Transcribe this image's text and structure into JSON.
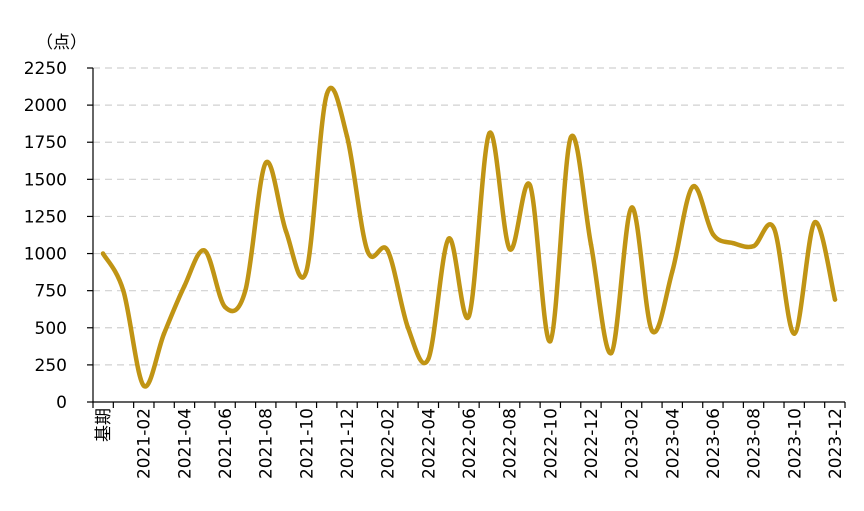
{
  "chart_data": {
    "type": "line",
    "unit_label": "（点）",
    "x_tick_labels": [
      "基期",
      "2021-02",
      "2021-04",
      "2021-06",
      "2021-08",
      "2021-10",
      "2021-12",
      "2022-02",
      "2022-04",
      "2022-06",
      "2022-08",
      "2022-10",
      "2022-12",
      "2023-02",
      "2023-04",
      "2023-06",
      "2023-08",
      "2023-10",
      "2023-12"
    ],
    "y_ticks": [
      0,
      250,
      500,
      750,
      1000,
      1250,
      1500,
      1750,
      2000,
      2250
    ],
    "ylim": [
      0,
      2250
    ],
    "grid": true,
    "series": [
      {
        "color": "#C09414",
        "x": [
          "基期",
          "2021-01",
          "2021-02",
          "2021-03",
          "2021-04",
          "2021-05",
          "2021-06",
          "2021-07",
          "2021-08",
          "2021-09",
          "2021-10",
          "2021-11",
          "2021-12",
          "2022-01",
          "2022-02",
          "2022-03",
          "2022-04",
          "2022-05",
          "2022-06",
          "2022-07",
          "2022-08",
          "2022-09",
          "2022-10",
          "2022-11",
          "2022-12",
          "2023-01",
          "2023-02",
          "2023-03",
          "2023-04",
          "2023-05",
          "2023-06",
          "2023-07",
          "2023-08",
          "2023-09",
          "2023-10",
          "2023-11",
          "2023-12"
        ],
        "values": [
          1000,
          750,
          110,
          460,
          780,
          1020,
          640,
          750,
          1610,
          1150,
          880,
          2070,
          1790,
          1020,
          1020,
          500,
          290,
          1100,
          580,
          1810,
          1030,
          1460,
          410,
          1780,
          1060,
          330,
          1310,
          480,
          880,
          1450,
          1130,
          1070,
          1050,
          1170,
          460,
          1210,
          690
        ]
      }
    ]
  }
}
